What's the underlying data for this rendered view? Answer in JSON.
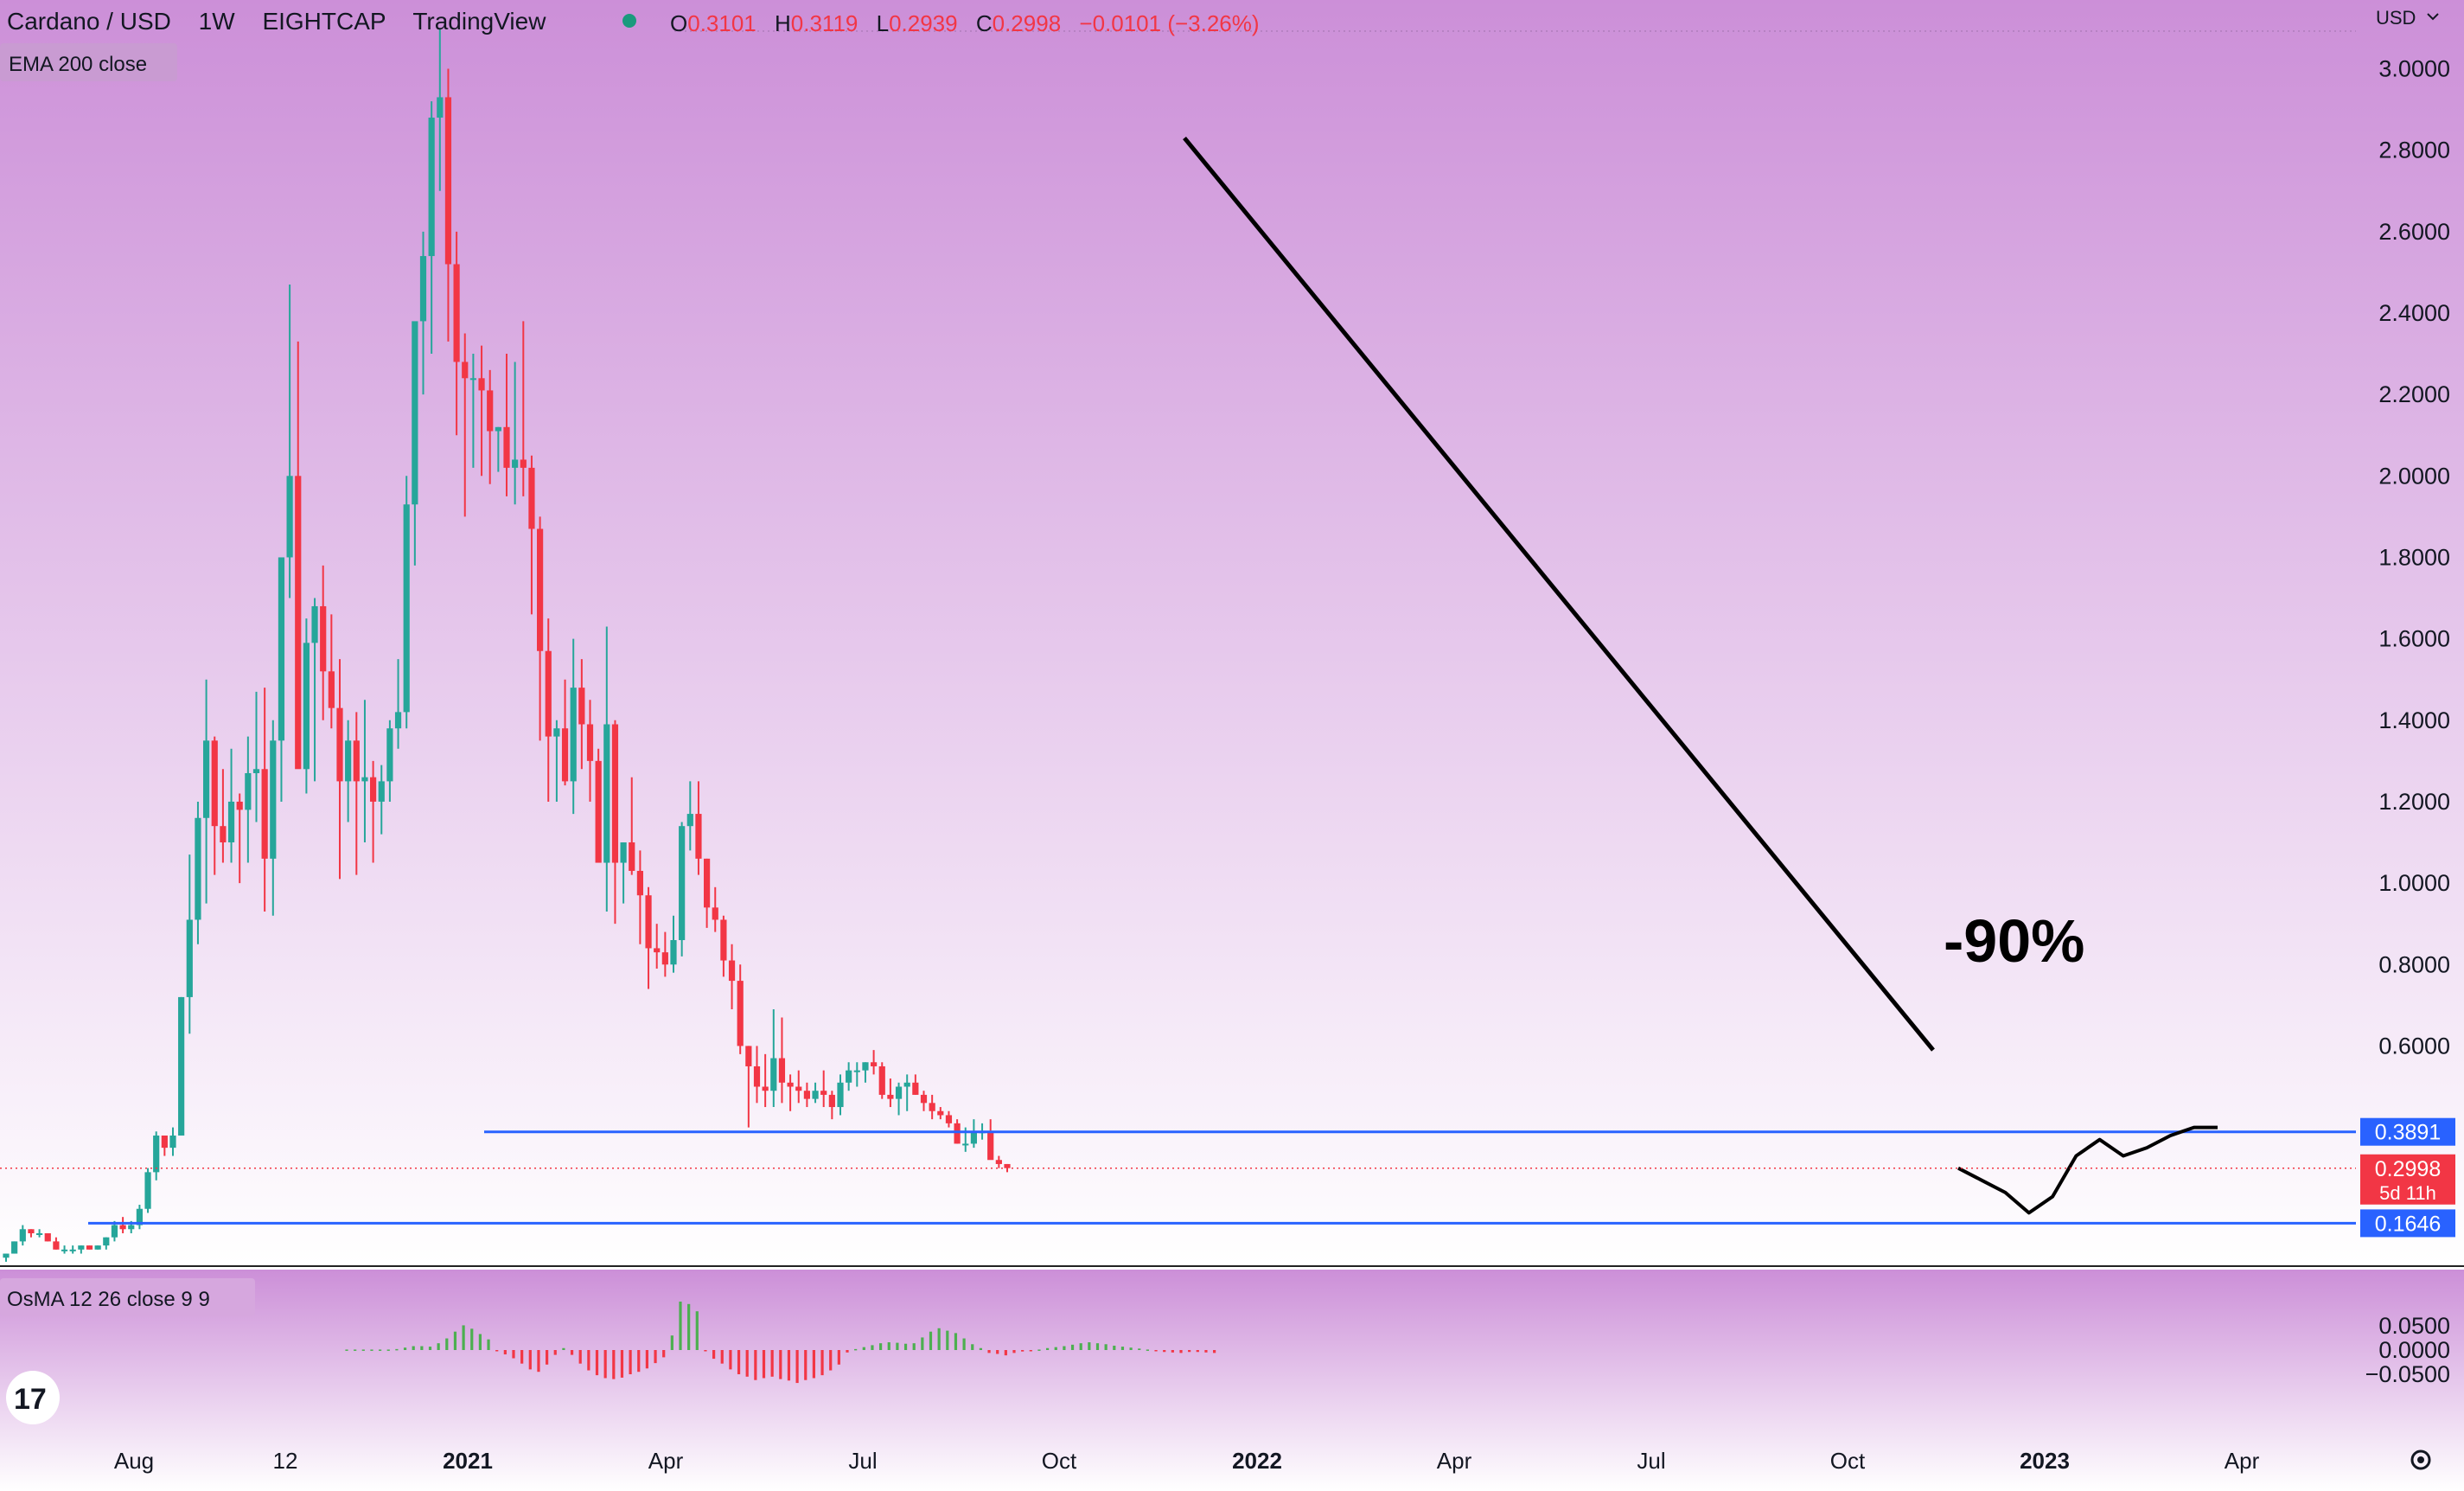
{
  "header": {
    "symbol": "Cardano / USD",
    "interval": "1W",
    "exchange": "EIGHTCAP",
    "source": "TradingView",
    "o_label": "O",
    "o_value": "0.3101",
    "h_label": "H",
    "h_value": "0.3119",
    "l_label": "L",
    "l_value": "0.2939",
    "c_label": "C",
    "c_value": "0.2998",
    "change": "−0.0101 (−3.26%)",
    "indicator": "EMA 200 close"
  },
  "currency_label": "USD",
  "price_axis_labels": [
    "3.0000",
    "2.8000",
    "2.6000",
    "2.4000",
    "2.2000",
    "2.0000",
    "1.8000",
    "1.6000",
    "1.4000",
    "1.2000",
    "1.0000",
    "0.8000",
    "0.6000"
  ],
  "osma": {
    "label": "OsMA 12 26 close 9 9",
    "axis_labels": [
      "0.0500",
      "0.0000",
      "−0.0500"
    ]
  },
  "time_axis_labels": [
    {
      "text": "Aug",
      "bold": false
    },
    {
      "text": "12",
      "bold": false
    },
    {
      "text": "2021",
      "bold": true
    },
    {
      "text": "Apr",
      "bold": false
    },
    {
      "text": "Jul",
      "bold": false
    },
    {
      "text": "Oct",
      "bold": false
    },
    {
      "text": "2022",
      "bold": true
    },
    {
      "text": "Apr",
      "bold": false
    },
    {
      "text": "Jul",
      "bold": false
    },
    {
      "text": "Oct",
      "bold": false
    },
    {
      "text": "2023",
      "bold": true
    },
    {
      "text": "Apr",
      "bold": false
    }
  ],
  "annotation": "-90%",
  "levels": [
    {
      "value": 0.3891,
      "label": "0.3891"
    },
    {
      "value": 0.1646,
      "label": "0.1646"
    }
  ],
  "current_price": {
    "value": 0.2998,
    "label": "0.2998",
    "countdown": "5d 11h"
  },
  "colors": {
    "up": "#26a69a",
    "down": "#f23645",
    "level": "#2962ff",
    "bg_top": "#cc8fd8",
    "bg_bottom": "#ffffff",
    "osma_up": "#4caf50",
    "osma_down": "#f23645"
  },
  "icons": {
    "logo": "tradingview-logo-icon",
    "settings": "gear-icon",
    "status": "market-status-dot-icon"
  },
  "chart_data": {
    "type": "candlestick",
    "title": "Cardano / USD",
    "interval": "1W",
    "ylim": [
      0.1,
      3.1
    ],
    "weekly_ohlc_approx": [
      [
        0.08,
        0.09,
        0.07,
        0.09
      ],
      [
        0.09,
        0.12,
        0.09,
        0.12
      ],
      [
        0.12,
        0.16,
        0.11,
        0.15
      ],
      [
        0.15,
        0.15,
        0.13,
        0.14
      ],
      [
        0.14,
        0.15,
        0.13,
        0.14
      ],
      [
        0.14,
        0.14,
        0.12,
        0.12
      ],
      [
        0.12,
        0.13,
        0.1,
        0.1
      ],
      [
        0.1,
        0.11,
        0.09,
        0.1
      ],
      [
        0.1,
        0.11,
        0.09,
        0.1
      ],
      [
        0.1,
        0.11,
        0.09,
        0.11
      ],
      [
        0.11,
        0.11,
        0.1,
        0.1
      ],
      [
        0.1,
        0.11,
        0.1,
        0.11
      ],
      [
        0.11,
        0.13,
        0.1,
        0.13
      ],
      [
        0.13,
        0.17,
        0.12,
        0.16
      ],
      [
        0.16,
        0.18,
        0.14,
        0.15
      ],
      [
        0.15,
        0.17,
        0.14,
        0.16
      ],
      [
        0.16,
        0.21,
        0.15,
        0.2
      ],
      [
        0.2,
        0.3,
        0.19,
        0.29
      ],
      [
        0.29,
        0.39,
        0.27,
        0.38
      ],
      [
        0.38,
        0.38,
        0.33,
        0.35
      ],
      [
        0.35,
        0.4,
        0.33,
        0.38
      ],
      [
        0.38,
        0.72,
        0.38,
        0.72
      ],
      [
        0.72,
        1.07,
        0.63,
        0.91
      ],
      [
        0.91,
        1.2,
        0.85,
        1.16
      ],
      [
        1.16,
        1.5,
        0.95,
        1.35
      ],
      [
        1.35,
        1.36,
        1.02,
        1.14
      ],
      [
        1.14,
        1.28,
        1.05,
        1.1
      ],
      [
        1.1,
        1.33,
        1.05,
        1.2
      ],
      [
        1.2,
        1.22,
        1.0,
        1.18
      ],
      [
        1.18,
        1.36,
        1.05,
        1.27
      ],
      [
        1.27,
        1.47,
        1.15,
        1.28
      ],
      [
        1.28,
        1.48,
        0.93,
        1.06
      ],
      [
        1.06,
        1.4,
        0.92,
        1.35
      ],
      [
        1.35,
        1.55,
        1.2,
        1.8
      ],
      [
        1.8,
        2.47,
        1.7,
        2.0
      ],
      [
        2.0,
        2.33,
        1.4,
        1.28
      ],
      [
        1.28,
        1.65,
        1.22,
        1.59
      ],
      [
        1.59,
        1.7,
        1.25,
        1.68
      ],
      [
        1.68,
        1.78,
        1.4,
        1.52
      ],
      [
        1.52,
        1.66,
        1.38,
        1.43
      ],
      [
        1.43,
        1.55,
        1.01,
        1.25
      ],
      [
        1.25,
        1.4,
        1.15,
        1.35
      ],
      [
        1.35,
        1.42,
        1.02,
        1.25
      ],
      [
        1.25,
        1.45,
        1.1,
        1.26
      ],
      [
        1.26,
        1.3,
        1.05,
        1.2
      ],
      [
        1.2,
        1.29,
        1.12,
        1.25
      ],
      [
        1.25,
        1.4,
        1.2,
        1.38
      ],
      [
        1.38,
        1.55,
        1.33,
        1.42
      ],
      [
        1.42,
        2.0,
        1.38,
        1.93
      ],
      [
        1.93,
        2.2,
        1.78,
        2.38
      ],
      [
        2.38,
        2.6,
        2.2,
        2.54
      ],
      [
        2.54,
        2.92,
        2.3,
        2.88
      ],
      [
        2.88,
        3.1,
        2.7,
        2.93
      ],
      [
        2.93,
        3.0,
        2.33,
        2.52
      ],
      [
        2.52,
        2.6,
        2.1,
        2.28
      ],
      [
        2.28,
        2.35,
        1.9,
        2.24
      ],
      [
        2.24,
        2.3,
        2.02,
        2.24
      ],
      [
        2.24,
        2.32,
        2.0,
        2.21
      ],
      [
        2.21,
        2.26,
        1.98,
        2.11
      ],
      [
        2.11,
        2.12,
        2.01,
        2.12
      ],
      [
        2.12,
        2.3,
        1.95,
        2.02
      ],
      [
        2.02,
        2.28,
        1.93,
        2.04
      ],
      [
        2.04,
        2.38,
        1.95,
        2.02
      ],
      [
        2.02,
        2.05,
        1.66,
        1.87
      ],
      [
        1.87,
        1.9,
        1.35,
        1.57
      ],
      [
        1.57,
        1.65,
        1.2,
        1.36
      ],
      [
        1.36,
        1.4,
        1.2,
        1.38
      ],
      [
        1.38,
        1.5,
        1.24,
        1.25
      ],
      [
        1.25,
        1.6,
        1.17,
        1.48
      ],
      [
        1.48,
        1.55,
        1.28,
        1.39
      ],
      [
        1.39,
        1.45,
        1.2,
        1.3
      ],
      [
        1.3,
        1.33,
        1.05,
        1.05
      ],
      [
        1.05,
        1.63,
        0.93,
        1.39
      ],
      [
        1.39,
        1.4,
        0.9,
        1.05
      ],
      [
        1.05,
        1.1,
        0.95,
        1.1
      ],
      [
        1.1,
        1.26,
        1.02,
        1.03
      ],
      [
        1.03,
        1.08,
        0.85,
        0.97
      ],
      [
        0.97,
        0.99,
        0.74,
        0.84
      ],
      [
        0.84,
        0.9,
        0.79,
        0.83
      ],
      [
        0.83,
        0.88,
        0.77,
        0.8
      ],
      [
        0.8,
        0.92,
        0.78,
        0.86
      ],
      [
        0.86,
        1.15,
        0.82,
        1.14
      ],
      [
        1.14,
        1.25,
        1.08,
        1.17
      ],
      [
        1.17,
        1.25,
        1.02,
        1.06
      ],
      [
        1.06,
        1.06,
        0.89,
        0.94
      ],
      [
        0.94,
        0.99,
        0.88,
        0.91
      ],
      [
        0.91,
        0.92,
        0.77,
        0.81
      ],
      [
        0.81,
        0.85,
        0.69,
        0.76
      ],
      [
        0.76,
        0.8,
        0.58,
        0.6
      ],
      [
        0.6,
        0.6,
        0.4,
        0.55
      ],
      [
        0.55,
        0.6,
        0.46,
        0.5
      ],
      [
        0.5,
        0.58,
        0.45,
        0.49
      ],
      [
        0.49,
        0.69,
        0.45,
        0.57
      ],
      [
        0.57,
        0.67,
        0.46,
        0.51
      ],
      [
        0.51,
        0.53,
        0.44,
        0.5
      ],
      [
        0.5,
        0.54,
        0.46,
        0.49
      ],
      [
        0.49,
        0.51,
        0.45,
        0.47
      ],
      [
        0.47,
        0.51,
        0.46,
        0.49
      ],
      [
        0.49,
        0.54,
        0.45,
        0.48
      ],
      [
        0.48,
        0.49,
        0.42,
        0.45
      ],
      [
        0.45,
        0.53,
        0.43,
        0.51
      ],
      [
        0.51,
        0.56,
        0.49,
        0.54
      ],
      [
        0.54,
        0.56,
        0.5,
        0.54
      ],
      [
        0.54,
        0.56,
        0.51,
        0.56
      ],
      [
        0.56,
        0.59,
        0.53,
        0.55
      ],
      [
        0.55,
        0.56,
        0.47,
        0.48
      ],
      [
        0.48,
        0.52,
        0.45,
        0.47
      ],
      [
        0.47,
        0.51,
        0.43,
        0.5
      ],
      [
        0.5,
        0.53,
        0.44,
        0.51
      ],
      [
        0.51,
        0.53,
        0.48,
        0.48
      ],
      [
        0.48,
        0.49,
        0.44,
        0.46
      ],
      [
        0.46,
        0.48,
        0.42,
        0.44
      ],
      [
        0.44,
        0.45,
        0.42,
        0.43
      ],
      [
        0.43,
        0.44,
        0.4,
        0.41
      ],
      [
        0.41,
        0.42,
        0.36,
        0.36
      ],
      [
        0.36,
        0.4,
        0.34,
        0.36
      ],
      [
        0.36,
        0.42,
        0.35,
        0.39
      ],
      [
        0.39,
        0.41,
        0.37,
        0.39
      ],
      [
        0.39,
        0.42,
        0.35,
        0.32
      ],
      [
        0.32,
        0.33,
        0.3,
        0.31
      ],
      [
        0.31,
        0.31,
        0.29,
        0.3
      ]
    ],
    "projection": [
      [
        0.3,
        0.27
      ],
      [
        0.24,
        0.19
      ],
      [
        0.23,
        0.33
      ],
      [
        0.37,
        0.33
      ],
      [
        0.35,
        0.38
      ],
      [
        0.4,
        0.4
      ]
    ],
    "trend_line": {
      "from": 2.83,
      "to": 0.59
    },
    "osma_values": [
      0.001,
      0.001,
      0.001,
      0.001,
      0.001,
      0.001,
      0.002,
      0.005,
      0.008,
      0.008,
      0.007,
      0.014,
      0.024,
      0.038,
      0.051,
      0.044,
      0.033,
      0.022,
      -0.002,
      -0.009,
      -0.017,
      -0.028,
      -0.04,
      -0.045,
      -0.03,
      -0.01,
      0.004,
      -0.01,
      -0.028,
      -0.042,
      -0.052,
      -0.058,
      -0.06,
      -0.057,
      -0.05,
      -0.045,
      -0.038,
      -0.027,
      -0.015,
      0.03,
      0.1,
      0.095,
      0.08,
      -0.002,
      -0.018,
      -0.028,
      -0.04,
      -0.05,
      -0.055,
      -0.062,
      -0.058,
      -0.055,
      -0.06,
      -0.063,
      -0.068,
      -0.062,
      -0.058,
      -0.052,
      -0.042,
      -0.03,
      -0.005,
      0.002,
      0.006,
      0.01,
      0.014,
      0.016,
      0.015,
      0.013,
      0.014,
      0.026,
      0.038,
      0.045,
      0.04,
      0.035,
      0.024,
      0.012,
      0.004,
      -0.006,
      -0.008,
      -0.011,
      -0.006,
      -0.003,
      -0.002,
      0.001,
      0.004,
      0.006,
      0.008,
      0.011,
      0.014,
      0.016,
      0.014,
      0.012,
      0.009,
      0.007,
      0.005,
      0.003,
      0.001,
      -0.002,
      -0.004,
      -0.005,
      -0.006,
      -0.004,
      -0.004,
      -0.005,
      -0.006
    ]
  }
}
